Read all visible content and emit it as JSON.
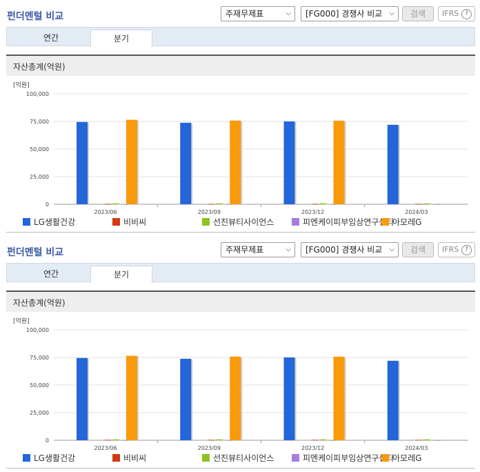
{
  "header": {
    "title": "펀더멘털 비교",
    "select_statement": "주재무제표",
    "select_group": "[FG000] 경쟁사 비교",
    "search_label": "검색",
    "ifrs_label": "IFRS",
    "help_glyph": "?"
  },
  "tabs": [
    {
      "label": "연간",
      "active": false
    },
    {
      "label": "분기",
      "active": true
    }
  ],
  "chart_title": "자산총계(억원)",
  "colors": {
    "LG생활건강": "#2466d9",
    "비비씨": "#d23a12",
    "선진뷰티사이언스": "#8fc31f",
    "피엔케이피부임상연구센타": "#a77ee0",
    "아모레G": "#f89a0c"
  },
  "chart_data": {
    "type": "bar",
    "ylabel": "[억원]",
    "ylim": [
      0,
      100000
    ],
    "yticks": [
      "100,000",
      "75,000",
      "50,000",
      "25,000",
      "0"
    ],
    "categories": [
      "2023/06",
      "2023/09",
      "2023/12",
      "2024/03"
    ],
    "series": [
      {
        "name": "LG생활건강",
        "values": [
          74500,
          73800,
          75000,
          72000
        ]
      },
      {
        "name": "비비씨",
        "values": [
          400,
          400,
          400,
          400
        ]
      },
      {
        "name": "선진뷰티사이언스",
        "values": [
          800,
          800,
          800,
          800
        ]
      },
      {
        "name": "피엔케이피부임상연구센타",
        "values": [
          300,
          300,
          300,
          300
        ]
      },
      {
        "name": "아모레G",
        "values": [
          76500,
          75800,
          75700,
          null
        ]
      }
    ]
  },
  "legend": [
    "LG생활건강",
    "비비씨",
    "선진뷰티사이언스",
    "피엔케이피부임상연구센타",
    "아모레G"
  ]
}
